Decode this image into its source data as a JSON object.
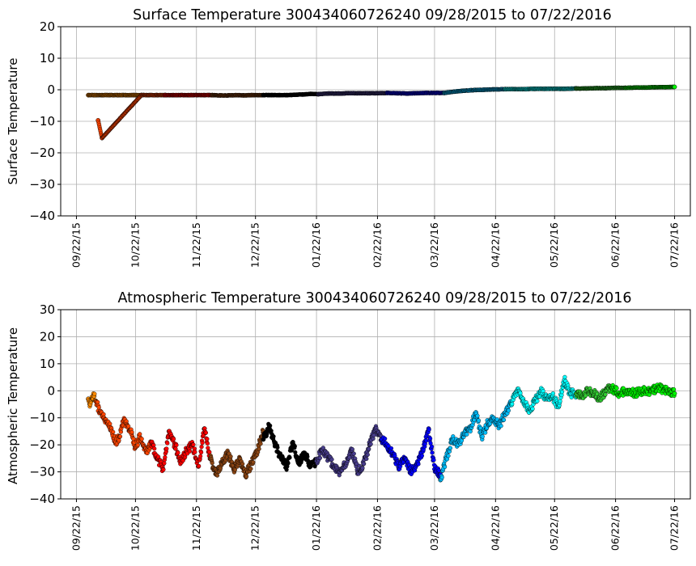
{
  "figure": {
    "background": "#ffffff",
    "grid": true
  },
  "chart_data": [
    {
      "type": "scatter",
      "title": "Surface Temperature 300434060726240  09/28/2015 to 07/22/2016",
      "xlabel": "",
      "ylabel": "Surface Temperature",
      "xlim": [
        "2015-09-14",
        "2016-07-30"
      ],
      "ylim": [
        -40,
        20
      ],
      "yticks": [
        20,
        10,
        0,
        -10,
        -20,
        -30,
        -40
      ],
      "xticks": [
        {
          "date": "2015-09-22",
          "label": "09/22/15"
        },
        {
          "date": "2015-10-22",
          "label": "10/22/15"
        },
        {
          "date": "2015-11-22",
          "label": "11/22/15"
        },
        {
          "date": "2015-12-22",
          "label": "12/22/15"
        },
        {
          "date": "2016-01-22",
          "label": "01/22/16"
        },
        {
          "date": "2016-02-22",
          "label": "02/22/16"
        },
        {
          "date": "2016-03-22",
          "label": "03/22/16"
        },
        {
          "date": "2016-04-22",
          "label": "04/22/16"
        },
        {
          "date": "2016-05-22",
          "label": "05/22/16"
        },
        {
          "date": "2016-06-22",
          "label": "06/22/16"
        },
        {
          "date": "2016-07-22",
          "label": "07/22/16"
        }
      ],
      "series": [
        {
          "color": "#ff8c00",
          "x": [
            "2015-09-28",
            "2015-10-01",
            "2015-10-05",
            "2015-10-09",
            "2015-10-13",
            "2015-10-17",
            "2015-10-21",
            "2015-10-25"
          ],
          "y": [
            -1.7,
            -1.7,
            -1.7,
            -1.7,
            -1.7,
            -1.7,
            -1.7,
            -1.7
          ]
        },
        {
          "color": "#ff4500",
          "x": [
            "2015-10-03",
            "2015-10-05",
            "2015-10-25",
            "2015-10-29",
            "2015-11-02",
            "2015-11-06"
          ],
          "y": [
            -9.7,
            -15.3,
            -1.7,
            -1.7,
            -1.7,
            -1.7
          ]
        },
        {
          "color": "#ff0000",
          "x": [
            "2015-11-06",
            "2015-11-10",
            "2015-11-14",
            "2015-11-18",
            "2015-11-22",
            "2015-11-26",
            "2015-11-30"
          ],
          "y": [
            -1.7,
            -1.7,
            -1.7,
            -1.7,
            -1.7,
            -1.7,
            -1.7
          ]
        },
        {
          "color": "#8b4513",
          "x": [
            "2015-11-30",
            "2015-12-04",
            "2015-12-08",
            "2015-12-12",
            "2015-12-16",
            "2015-12-20",
            "2015-12-26"
          ],
          "y": [
            -1.7,
            -1.8,
            -1.8,
            -1.7,
            -1.8,
            -1.7,
            -1.7
          ]
        },
        {
          "color": "#000000",
          "x": [
            "2015-12-26",
            "2015-12-30",
            "2016-01-03",
            "2016-01-07",
            "2016-01-11",
            "2016-01-15",
            "2016-01-19",
            "2016-01-23"
          ],
          "y": [
            -1.7,
            -1.7,
            -1.7,
            -1.7,
            -1.6,
            -1.5,
            -1.3,
            -1.4
          ]
        },
        {
          "color": "#483d8b",
          "x": [
            "2016-01-23",
            "2016-01-28",
            "2016-02-02",
            "2016-02-07",
            "2016-02-12",
            "2016-02-17",
            "2016-02-22",
            "2016-02-27"
          ],
          "y": [
            -1.4,
            -1.2,
            -1.2,
            -1.1,
            -1.1,
            -1.1,
            -1.1,
            -1.0
          ]
        },
        {
          "color": "#0000ff",
          "x": [
            "2016-02-27",
            "2016-03-03",
            "2016-03-08",
            "2016-03-13",
            "2016-03-18",
            "2016-03-23",
            "2016-03-27"
          ],
          "y": [
            -1.0,
            -1.1,
            -1.2,
            -1.1,
            -1.0,
            -1.0,
            -1.0
          ]
        },
        {
          "color": "#00bfff",
          "x": [
            "2016-03-27",
            "2016-04-01",
            "2016-04-06",
            "2016-04-11",
            "2016-04-16",
            "2016-04-21",
            "2016-04-27"
          ],
          "y": [
            -1.0,
            -0.6,
            -0.3,
            -0.1,
            0.0,
            0.1,
            0.2
          ]
        },
        {
          "color": "#00ffff",
          "x": [
            "2016-04-27",
            "2016-05-02",
            "2016-05-07",
            "2016-05-12",
            "2016-05-17",
            "2016-05-22",
            "2016-05-27",
            "2016-06-02"
          ],
          "y": [
            0.2,
            0.2,
            0.2,
            0.3,
            0.3,
            0.3,
            0.3,
            0.4
          ]
        },
        {
          "color": "#32cd32",
          "x": [
            "2016-06-02",
            "2016-06-07",
            "2016-06-12",
            "2016-06-17",
            "2016-06-22",
            "2016-06-27"
          ],
          "y": [
            0.4,
            0.4,
            0.5,
            0.5,
            0.6,
            0.6
          ]
        },
        {
          "color": "#00ff00",
          "x": [
            "2016-06-27",
            "2016-07-02",
            "2016-07-07",
            "2016-07-12",
            "2016-07-17",
            "2016-07-22"
          ],
          "y": [
            0.6,
            0.7,
            0.7,
            0.8,
            0.8,
            0.9
          ]
        }
      ]
    },
    {
      "type": "scatter",
      "title": "Atmospheric Temperature 300434060726240  09/28/2015 to 07/22/2016",
      "xlabel": "",
      "ylabel": "Atmospheric Temperature",
      "xlim": [
        "2015-09-14",
        "2016-07-30"
      ],
      "ylim": [
        -40,
        30
      ],
      "yticks": [
        30,
        20,
        10,
        0,
        -10,
        -20,
        -30,
        -40
      ],
      "xticks": [
        {
          "date": "2015-09-22",
          "label": "09/22/15"
        },
        {
          "date": "2015-10-22",
          "label": "10/22/15"
        },
        {
          "date": "2015-11-22",
          "label": "11/22/15"
        },
        {
          "date": "2015-12-22",
          "label": "12/22/15"
        },
        {
          "date": "2016-01-22",
          "label": "01/22/16"
        },
        {
          "date": "2016-02-22",
          "label": "02/22/16"
        },
        {
          "date": "2016-03-22",
          "label": "03/22/16"
        },
        {
          "date": "2016-04-22",
          "label": "04/22/16"
        },
        {
          "date": "2016-05-22",
          "label": "05/22/16"
        },
        {
          "date": "2016-06-22",
          "label": "06/22/16"
        },
        {
          "date": "2016-07-22",
          "label": "07/22/16"
        }
      ],
      "series": [
        {
          "color": "#ff8c00",
          "x": [
            "2015-09-28",
            "2015-09-29",
            "2015-09-30",
            "2015-10-01",
            "2015-10-02"
          ],
          "y": [
            -3,
            -5,
            -3,
            -2,
            -4
          ]
        },
        {
          "color": "#ff4500",
          "x": [
            "2015-10-02",
            "2015-10-04",
            "2015-10-06",
            "2015-10-08",
            "2015-10-10",
            "2015-10-12",
            "2015-10-14",
            "2015-10-16",
            "2015-10-18",
            "2015-10-20",
            "2015-10-22",
            "2015-10-24",
            "2015-10-26",
            "2015-10-28",
            "2015-10-30"
          ],
          "y": [
            -4,
            -8,
            -10,
            -12,
            -15,
            -19,
            -17,
            -11,
            -13,
            -16,
            -21,
            -17,
            -20,
            -23,
            -19
          ]
        },
        {
          "color": "#ff0000",
          "x": [
            "2015-10-30",
            "2015-11-02",
            "2015-11-05",
            "2015-11-08",
            "2015-11-11",
            "2015-11-14",
            "2015-11-17",
            "2015-11-20",
            "2015-11-23",
            "2015-11-26",
            "2015-11-29"
          ],
          "y": [
            -19,
            -25,
            -29,
            -15,
            -20,
            -26,
            -22,
            -20,
            -28,
            -14,
            -25
          ]
        },
        {
          "color": "#8b4513",
          "x": [
            "2015-11-29",
            "2015-12-02",
            "2015-12-05",
            "2015-12-08",
            "2015-12-11",
            "2015-12-14",
            "2015-12-17",
            "2015-12-20",
            "2015-12-23",
            "2015-12-26"
          ],
          "y": [
            -25,
            -31,
            -27,
            -23,
            -29,
            -25,
            -31,
            -27,
            -22,
            -15
          ]
        },
        {
          "color": "#000000",
          "x": [
            "2015-12-26",
            "2015-12-29",
            "2016-01-01",
            "2016-01-04",
            "2016-01-07",
            "2016-01-10",
            "2016-01-13",
            "2016-01-16",
            "2016-01-19",
            "2016-01-22"
          ],
          "y": [
            -18,
            -13,
            -20,
            -25,
            -28,
            -19,
            -27,
            -23,
            -28,
            -26
          ]
        },
        {
          "color": "#483d8b",
          "x": [
            "2016-01-22",
            "2016-01-25",
            "2016-01-28",
            "2016-01-31",
            "2016-02-03",
            "2016-02-06",
            "2016-02-09",
            "2016-02-12",
            "2016-02-15",
            "2016-02-18",
            "2016-02-21",
            "2016-02-24"
          ],
          "y": [
            -26,
            -22,
            -25,
            -28,
            -30,
            -27,
            -22,
            -30,
            -27,
            -20,
            -14,
            -18
          ]
        },
        {
          "color": "#0000ff",
          "x": [
            "2016-02-24",
            "2016-02-27",
            "2016-03-01",
            "2016-03-04",
            "2016-03-07",
            "2016-03-10",
            "2016-03-13",
            "2016-03-16",
            "2016-03-19",
            "2016-03-22",
            "2016-03-25"
          ],
          "y": [
            -18,
            -20,
            -24,
            -28,
            -25,
            -30,
            -27,
            -22,
            -14,
            -29,
            -31
          ]
        },
        {
          "color": "#00bfff",
          "x": [
            "2016-03-25",
            "2016-03-28",
            "2016-03-31",
            "2016-04-03",
            "2016-04-06",
            "2016-04-09",
            "2016-04-12",
            "2016-04-15",
            "2016-04-18",
            "2016-04-21",
            "2016-04-24",
            "2016-04-27",
            "2016-04-30"
          ],
          "y": [
            -33,
            -25,
            -18,
            -20,
            -16,
            -14,
            -8,
            -17,
            -12,
            -10,
            -13,
            -8,
            -5
          ]
        },
        {
          "color": "#00ffff",
          "x": [
            "2016-04-30",
            "2016-05-03",
            "2016-05-06",
            "2016-05-09",
            "2016-05-12",
            "2016-05-15",
            "2016-05-18",
            "2016-05-21",
            "2016-05-24",
            "2016-05-27",
            "2016-05-30",
            "2016-06-02"
          ],
          "y": [
            -5,
            0,
            -3,
            -8,
            -4,
            0,
            -3,
            -2,
            -6,
            4,
            -1,
            -1
          ]
        },
        {
          "color": "#32cd32",
          "x": [
            "2016-06-02",
            "2016-06-05",
            "2016-06-08",
            "2016-06-11",
            "2016-06-14",
            "2016-06-17",
            "2016-06-20"
          ],
          "y": [
            -1,
            -2,
            0,
            -1,
            -3,
            0,
            1
          ]
        },
        {
          "color": "#00ff00",
          "x": [
            "2016-06-20",
            "2016-06-24",
            "2016-06-28",
            "2016-07-02",
            "2016-07-06",
            "2016-07-10",
            "2016-07-14",
            "2016-07-18",
            "2016-07-22"
          ],
          "y": [
            1,
            -1,
            0,
            -1,
            0,
            0,
            1,
            0,
            -1
          ]
        }
      ]
    }
  ]
}
